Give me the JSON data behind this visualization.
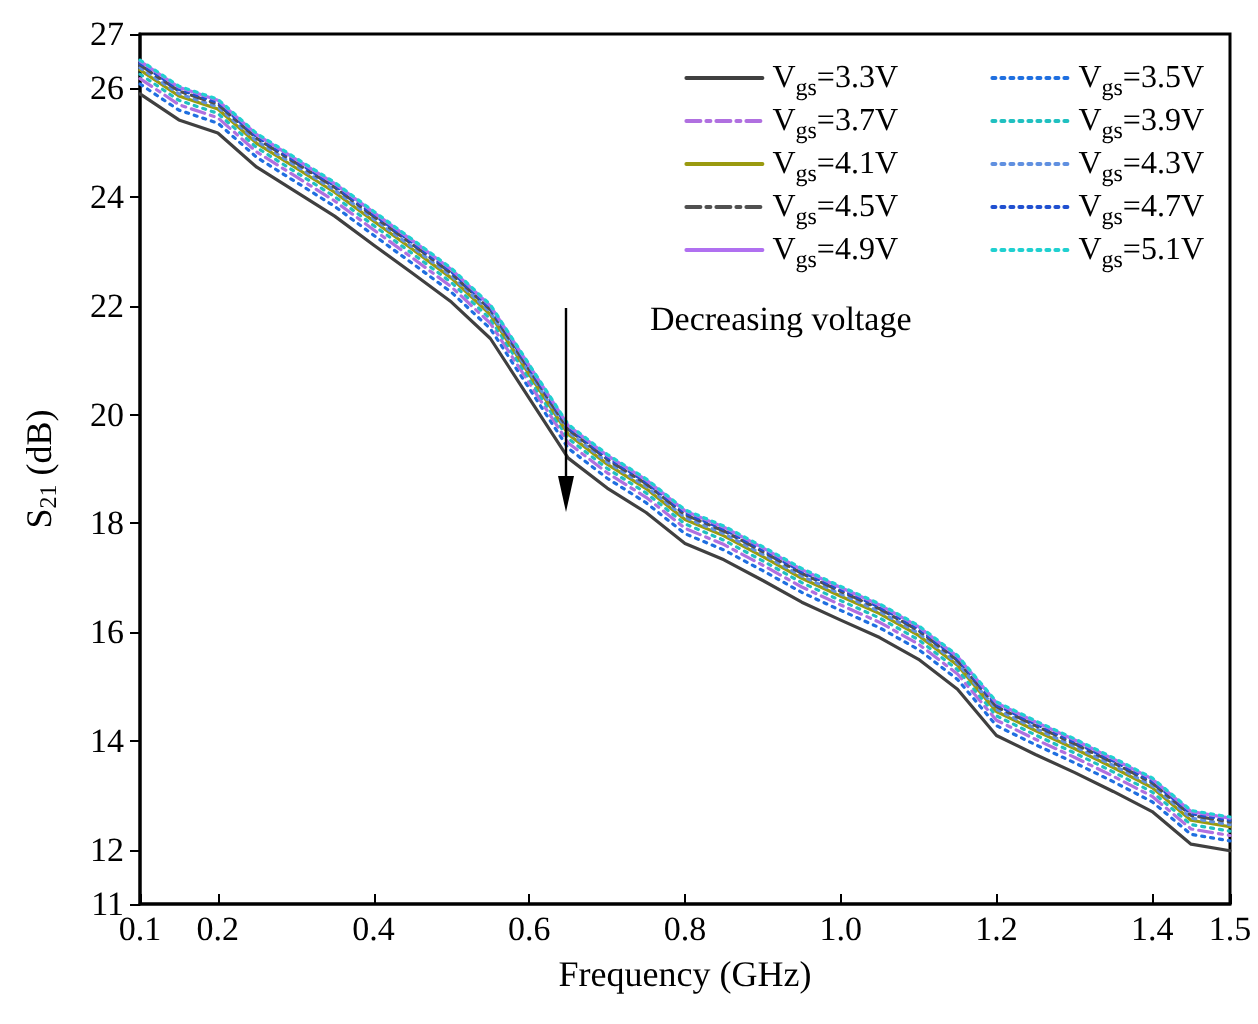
{
  "chart_data": {
    "type": "line",
    "xlabel": "Frequency (GHz)",
    "ylabel": "S$_{21}$ (dB)",
    "x": [
      0.1,
      0.15,
      0.2,
      0.25,
      0.3,
      0.35,
      0.4,
      0.45,
      0.5,
      0.55,
      0.6,
      0.65,
      0.7,
      0.75,
      0.8,
      0.85,
      0.9,
      0.95,
      1.0,
      1.05,
      1.1,
      1.15,
      1.2,
      1.25,
      1.3,
      1.35,
      1.4,
      1.45,
      1.5
    ],
    "xlim": [
      0.1,
      1.5
    ],
    "xticks": [
      0.1,
      0.2,
      0.4,
      0.6,
      0.8,
      {
        "value": 1,
        "label": "1.0"
      },
      1.2,
      1.4,
      1.5
    ],
    "ylim": [
      11,
      27
    ],
    "yticks": [
      11,
      12,
      14,
      16,
      18,
      20,
      22,
      24,
      26,
      27
    ],
    "grid": false,
    "legend": "top right",
    "marker": "none",
    "annotations": [
      "Decreasing voltage"
    ],
    "series": [
      {
        "name": "V$_{gs}$=3.3V",
        "color": "#404040",
        "line_style": "solid",
        "values": [
          25.9,
          25.42,
          25.18,
          24.55,
          24.1,
          23.65,
          23.12,
          22.6,
          22.07,
          21.4,
          20.3,
          19.2,
          18.65,
          18.2,
          17.63,
          17.33,
          16.95,
          16.55,
          16.22,
          15.9,
          15.5,
          14.95,
          14.1,
          13.75,
          13.42,
          13.07,
          12.7,
          12.1,
          11.98
        ]
      },
      {
        "name": "V$_{gs}$=3.5V",
        "color": "#1f6fe0",
        "line_style": "dotted",
        "values": [
          26.08,
          25.6,
          25.36,
          24.73,
          24.28,
          23.83,
          23.3,
          22.78,
          22.25,
          21.58,
          20.48,
          19.38,
          18.83,
          18.38,
          17.81,
          17.51,
          17.13,
          16.73,
          16.4,
          16.08,
          15.68,
          15.13,
          14.28,
          13.93,
          13.6,
          13.25,
          12.88,
          12.28,
          12.16
        ]
      },
      {
        "name": "V$_{gs}$=3.7V",
        "color": "#b070e0",
        "line_style": "dashed",
        "values": [
          26.18,
          25.7,
          25.46,
          24.83,
          24.38,
          23.93,
          23.4,
          22.88,
          22.35,
          21.68,
          20.58,
          19.48,
          18.93,
          18.48,
          17.91,
          17.61,
          17.23,
          16.83,
          16.5,
          16.18,
          15.78,
          15.23,
          14.38,
          14.03,
          13.7,
          13.35,
          12.98,
          12.38,
          12.26
        ]
      },
      {
        "name": "V$_{gs}$=3.9V",
        "color": "#20c0c0",
        "line_style": "dotted",
        "values": [
          26.26,
          25.78,
          25.54,
          24.91,
          24.46,
          24.01,
          23.48,
          22.96,
          22.43,
          21.76,
          20.66,
          19.56,
          19.01,
          18.56,
          17.99,
          17.69,
          17.31,
          16.91,
          16.58,
          16.26,
          15.86,
          15.31,
          14.46,
          14.11,
          13.78,
          13.43,
          13.06,
          12.46,
          12.34
        ]
      },
      {
        "name": "V$_{gs}$=4.1V",
        "color": "#9a9a10",
        "line_style": "solid",
        "values": [
          26.34,
          25.86,
          25.62,
          24.99,
          24.54,
          24.09,
          23.56,
          23.04,
          22.51,
          21.84,
          20.74,
          19.64,
          19.09,
          18.64,
          18.07,
          17.77,
          17.39,
          16.99,
          16.66,
          16.34,
          15.94,
          15.39,
          14.54,
          14.19,
          13.86,
          13.51,
          13.14,
          12.54,
          12.42
        ]
      },
      {
        "name": "V$_{gs}$=4.3V",
        "color": "#6090e0",
        "line_style": "dotted",
        "values": [
          26.38,
          25.9,
          25.66,
          25.03,
          24.58,
          24.13,
          23.6,
          23.08,
          22.55,
          21.88,
          20.78,
          19.68,
          19.13,
          18.68,
          18.11,
          17.81,
          17.43,
          17.03,
          16.7,
          16.38,
          15.98,
          15.43,
          14.58,
          14.23,
          13.9,
          13.55,
          13.18,
          12.58,
          12.46
        ]
      },
      {
        "name": "V$_{gs}$=4.5V",
        "color": "#505050",
        "line_style": "dashed",
        "values": [
          26.43,
          25.95,
          25.71,
          25.08,
          24.63,
          24.18,
          23.65,
          23.13,
          22.6,
          21.93,
          20.83,
          19.73,
          19.18,
          18.73,
          18.16,
          17.86,
          17.48,
          17.08,
          16.75,
          16.43,
          16.03,
          15.48,
          14.63,
          14.28,
          13.95,
          13.6,
          13.23,
          12.63,
          12.51
        ]
      },
      {
        "name": "V$_{gs}$=4.7V",
        "color": "#2050d0",
        "line_style": "dotted",
        "values": [
          26.46,
          25.98,
          25.74,
          25.11,
          24.66,
          24.21,
          23.68,
          23.16,
          22.63,
          21.96,
          20.86,
          19.76,
          19.21,
          18.76,
          18.19,
          17.89,
          17.51,
          17.11,
          16.78,
          16.46,
          16.06,
          15.51,
          14.66,
          14.31,
          13.98,
          13.63,
          13.26,
          12.66,
          12.54
        ]
      },
      {
        "name": "V$_{gs}$=4.9V",
        "color": "#b070f0",
        "line_style": "solid",
        "values": [
          26.5,
          26.02,
          25.78,
          25.15,
          24.7,
          24.25,
          23.72,
          23.2,
          22.67,
          22,
          20.9,
          19.8,
          19.25,
          18.8,
          18.23,
          17.93,
          17.55,
          17.15,
          16.82,
          16.5,
          16.1,
          15.55,
          14.7,
          14.35,
          14.02,
          13.67,
          13.3,
          12.7,
          12.58
        ]
      },
      {
        "name": "V$_{gs}$=5.1V",
        "color": "#20d0d0",
        "line_style": "dotted",
        "values": [
          26.52,
          26.04,
          25.8,
          25.17,
          24.72,
          24.27,
          23.74,
          23.22,
          22.69,
          22.02,
          20.92,
          19.82,
          19.27,
          18.82,
          18.25,
          17.95,
          17.57,
          17.17,
          16.84,
          16.52,
          16.12,
          15.57,
          14.72,
          14.37,
          14.04,
          13.69,
          13.32,
          12.72,
          12.6
        ]
      }
    ]
  }
}
